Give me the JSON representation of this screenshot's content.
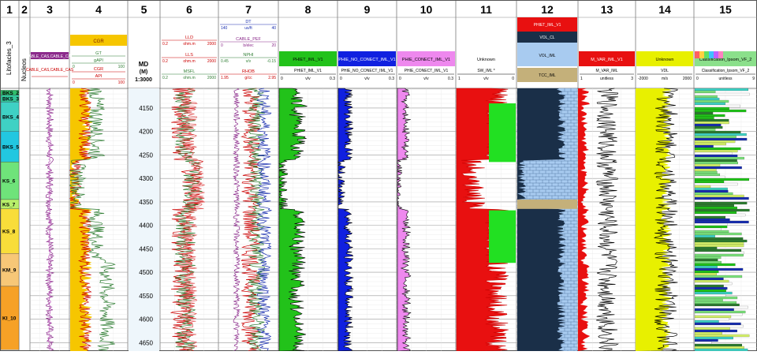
{
  "track_numbers": [
    "1",
    "2",
    "3",
    "4",
    "5",
    "6",
    "7",
    "8",
    "9",
    "10",
    "11",
    "12",
    "13",
    "14",
    "15"
  ],
  "side_labels": {
    "track1": "Litofacies_3",
    "track2": "Nucleos"
  },
  "depth_header": {
    "md": "MD",
    "unit": "(M)",
    "scale": "1:3000"
  },
  "track3": {
    "curve": "CABLE_CAS,CABLE_CAS",
    "curve2": "CABLE_CAS,CABLE_CAS"
  },
  "track4": {
    "cgr_fill": "CGR",
    "curves": [
      {
        "name": "GT",
        "unit": "",
        "left": "",
        "right": ""
      },
      {
        "name": "gAPI",
        "unit": "",
        "left": "0",
        "right": "100"
      },
      {
        "name": "CGR",
        "unit": "",
        "left": "",
        "right": ""
      },
      {
        "name": "API",
        "unit": "",
        "left": "0",
        "right": "100"
      }
    ]
  },
  "track6": {
    "curves": [
      {
        "name": "LLD",
        "unit": "ohm.m",
        "left": "0.2",
        "right": "2000"
      },
      {
        "name": "LLS",
        "unit": "ohm.m",
        "left": "0.2",
        "right": "2000"
      },
      {
        "name": "MSFL",
        "unit": "ohm.m",
        "left": "0.2",
        "right": "2000"
      }
    ]
  },
  "track7": {
    "curves": [
      {
        "name": "DT",
        "unit": "us/ft",
        "left": "140",
        "right": "40"
      },
      {
        "name": "CABLE_PEF",
        "unit": "b/elec",
        "left": "0",
        "right": "20"
      },
      {
        "name": "NPHI",
        "unit": "v/v",
        "left": "0.45",
        "right": "-0.15"
      },
      {
        "name": "RHOB",
        "unit": "g/cc",
        "left": "1.95",
        "right": "2.95"
      }
    ]
  },
  "track8": {
    "fill": "PHIET_IML_V1",
    "curve": "PHIET_IML_V1",
    "unit": "v/v",
    "left": "0",
    "right": "0.3"
  },
  "track9": {
    "fill": "PHIE_NO_CONECT_IML_V1",
    "curve": "PHIE_NO_CONECT_IML_V1",
    "unit": "v/v",
    "left": "0",
    "right": "0.3"
  },
  "track10": {
    "fill": "PHIE_CONECT_IML_V1",
    "curve": "PHIE_CONECT_IML_V1",
    "unit": "v/v",
    "left": "0",
    "right": "0.3"
  },
  "track11": {
    "fill": "Unknown",
    "curve": "SW_IML *",
    "unit": "v/v",
    "left": "1",
    "right": "0"
  },
  "track12": {
    "fills": [
      "PHIET_IML_V1",
      "VOL_CL",
      "VOL_IML",
      "TCC_IML"
    ]
  },
  "track13": {
    "fill": "M_VAR_IML_V1",
    "curve": "M_VAR_IML",
    "unit": "unitless",
    "left": "1",
    "right": "3"
  },
  "track14": {
    "fill": "Unknown",
    "curve": "VDL",
    "unit": "m/s",
    "left": "-2000",
    "right": "2000"
  },
  "track15": {
    "fill": "Classification_Ipsom_VF_2",
    "curve": "Classification_Ipsom_VF_2",
    "unit": "unitless",
    "left": "0",
    "right": "9"
  },
  "zones": [
    {
      "name": "BKS_2",
      "top": 4112,
      "bottom": 4122,
      "color": "#2fbf6a"
    },
    {
      "name": "BKS_3",
      "top": 4122,
      "bottom": 4137,
      "color": "#33c79a"
    },
    {
      "name": "BKS_4",
      "top": 4137,
      "bottom": 4200,
      "color": "#3fd1c4"
    },
    {
      "name": "BKS_5",
      "top": 4200,
      "bottom": 4265,
      "color": "#22c7e0"
    },
    {
      "name": "KS_6",
      "top": 4265,
      "bottom": 4345,
      "color": "#6fe37a"
    },
    {
      "name": "KS_7",
      "top": 4345,
      "bottom": 4365,
      "color": "#b7ef6a"
    },
    {
      "name": "KS_8",
      "top": 4365,
      "bottom": 4460,
      "color": "#f8dd3a"
    },
    {
      "name": "KM_9",
      "top": 4460,
      "bottom": 4530,
      "color": "#f7c777"
    },
    {
      "name": "KI_10",
      "top": 4530,
      "bottom": 4665,
      "color": "#f6a126"
    }
  ],
  "depth_ticks": [
    "4150",
    "4200",
    "4250",
    "4300",
    "4350",
    "4400",
    "4450",
    "4500",
    "4550",
    "4600",
    "4650"
  ],
  "depth_range": [
    4108,
    4668
  ]
}
